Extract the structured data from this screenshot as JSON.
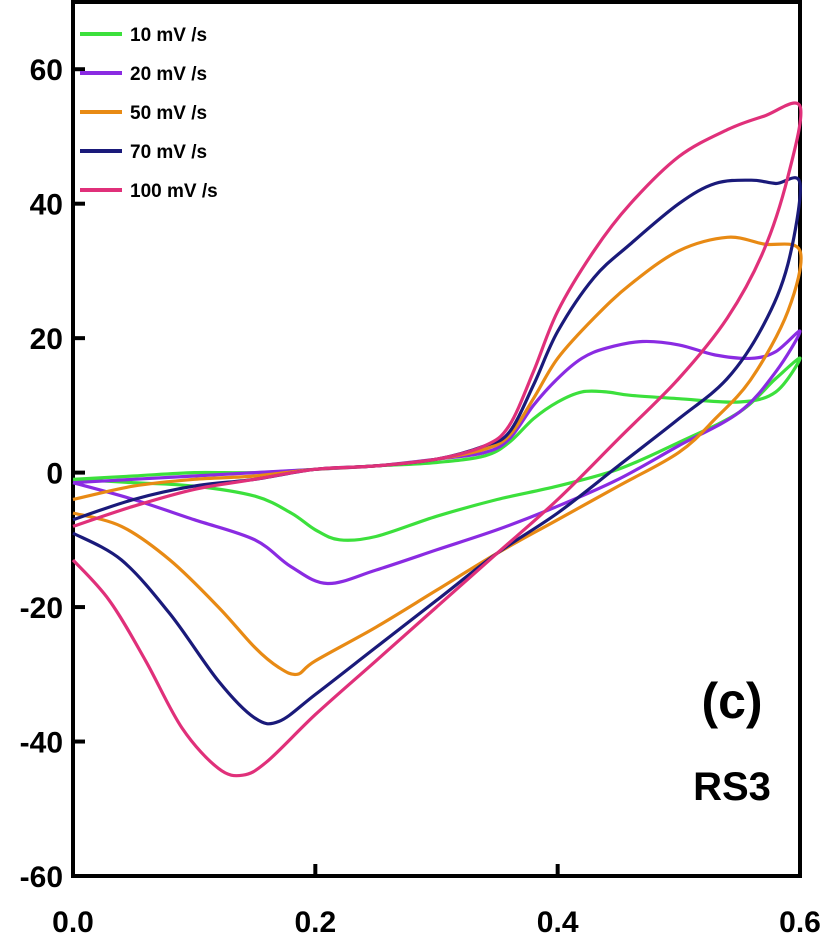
{
  "chart_data": {
    "type": "line",
    "title": "",
    "xlabel": "",
    "ylabel": "",
    "xlim": [
      0.0,
      0.6
    ],
    "ylim": [
      -60,
      70
    ],
    "xticks": [
      "0.0",
      "0.2",
      "0.4",
      "0.6"
    ],
    "yticks": [
      "-60",
      "-40",
      "-20",
      "0",
      "20",
      "40",
      "60"
    ],
    "xtick_values": [
      0.0,
      0.2,
      0.4,
      0.6
    ],
    "ytick_values": [
      -60,
      -40,
      -20,
      0,
      20,
      40,
      60
    ],
    "grid": false,
    "legend_position": "top-left",
    "annotations": [
      "(c)",
      "RS3"
    ],
    "series": [
      {
        "name": "10 mV /s",
        "color": "#3ce03c",
        "x": [
          0.0,
          0.05,
          0.1,
          0.15,
          0.2,
          0.25,
          0.3,
          0.34,
          0.36,
          0.38,
          0.4,
          0.42,
          0.44,
          0.46,
          0.5,
          0.55,
          0.58,
          0.6,
          0.58,
          0.55,
          0.5,
          0.45,
          0.4,
          0.35,
          0.3,
          0.25,
          0.22,
          0.2,
          0.18,
          0.15,
          0.1,
          0.05,
          0.0
        ],
        "y": [
          -1,
          -0.5,
          0,
          0,
          0.5,
          1,
          1.5,
          2.5,
          4.5,
          8,
          10.5,
          12,
          12,
          11.5,
          11,
          10.5,
          12,
          17,
          14,
          9,
          4.5,
          0.5,
          -2,
          -4,
          -6.5,
          -9.5,
          -10,
          -8.5,
          -6,
          -3.5,
          -2,
          -1.5,
          -1
        ]
      },
      {
        "name": "20 mV /s",
        "color": "#8a2be2",
        "x": [
          0.0,
          0.05,
          0.1,
          0.15,
          0.2,
          0.25,
          0.3,
          0.34,
          0.36,
          0.38,
          0.4,
          0.42,
          0.44,
          0.47,
          0.5,
          0.53,
          0.56,
          0.58,
          0.6,
          0.58,
          0.55,
          0.5,
          0.45,
          0.4,
          0.35,
          0.3,
          0.25,
          0.21,
          0.18,
          0.15,
          0.1,
          0.05,
          0.0
        ],
        "y": [
          -1.5,
          -1,
          -0.5,
          0,
          0.5,
          1,
          2,
          3,
          5,
          10,
          14,
          17,
          18.5,
          19.5,
          19,
          17.5,
          17,
          18,
          21,
          15,
          9,
          4,
          -1,
          -5,
          -8.5,
          -11.5,
          -14.5,
          -16.5,
          -14,
          -10,
          -7,
          -4,
          -1.5
        ]
      },
      {
        "name": "50 mV /s",
        "color": "#e88a14",
        "x": [
          0.0,
          0.05,
          0.1,
          0.15,
          0.2,
          0.25,
          0.3,
          0.34,
          0.36,
          0.38,
          0.4,
          0.43,
          0.46,
          0.5,
          0.54,
          0.57,
          0.6,
          0.59,
          0.56,
          0.53,
          0.5,
          0.45,
          0.4,
          0.35,
          0.3,
          0.25,
          0.2,
          0.185,
          0.17,
          0.15,
          0.12,
          0.08,
          0.04,
          0.0
        ],
        "y": [
          -4,
          -2,
          -1,
          -0.5,
          0.5,
          1,
          2,
          3.5,
          5.5,
          11,
          17,
          23,
          28,
          33,
          35,
          34,
          33,
          24,
          14,
          8,
          3,
          -2,
          -7,
          -12,
          -17.5,
          -23,
          -28,
          -30,
          -29,
          -26,
          -20,
          -13,
          -8,
          -6
        ]
      },
      {
        "name": "70 mV /s",
        "color": "#1a1a7a",
        "x": [
          0.0,
          0.05,
          0.1,
          0.15,
          0.2,
          0.25,
          0.3,
          0.34,
          0.36,
          0.38,
          0.4,
          0.43,
          0.46,
          0.5,
          0.53,
          0.56,
          0.58,
          0.6,
          0.59,
          0.57,
          0.54,
          0.5,
          0.45,
          0.4,
          0.35,
          0.3,
          0.25,
          0.2,
          0.17,
          0.15,
          0.12,
          0.08,
          0.04,
          0.0
        ],
        "y": [
          -7,
          -4,
          -2,
          -1,
          0.5,
          1,
          2,
          4,
          6,
          13,
          21,
          29,
          34,
          40,
          43,
          43.5,
          43,
          43,
          31,
          22,
          14,
          8,
          1,
          -6,
          -12,
          -19,
          -26,
          -33,
          -37,
          -36.5,
          -31,
          -21,
          -13,
          -9
        ]
      },
      {
        "name": "100 mV /s",
        "color": "#e0307a",
        "x": [
          0.0,
          0.05,
          0.1,
          0.15,
          0.2,
          0.25,
          0.3,
          0.34,
          0.36,
          0.38,
          0.4,
          0.43,
          0.46,
          0.5,
          0.54,
          0.57,
          0.6,
          0.59,
          0.57,
          0.54,
          0.5,
          0.45,
          0.4,
          0.35,
          0.3,
          0.25,
          0.2,
          0.16,
          0.14,
          0.12,
          0.09,
          0.06,
          0.03,
          0.0
        ],
        "y": [
          -8,
          -5,
          -2.5,
          -1,
          0.5,
          1,
          2,
          4,
          7,
          15,
          24,
          33,
          40,
          47,
          51,
          53,
          54.5,
          44,
          33,
          23,
          14,
          5,
          -4,
          -12,
          -20,
          -28,
          -36,
          -43,
          -45,
          -44,
          -38,
          -28,
          -19,
          -13
        ]
      }
    ]
  }
}
